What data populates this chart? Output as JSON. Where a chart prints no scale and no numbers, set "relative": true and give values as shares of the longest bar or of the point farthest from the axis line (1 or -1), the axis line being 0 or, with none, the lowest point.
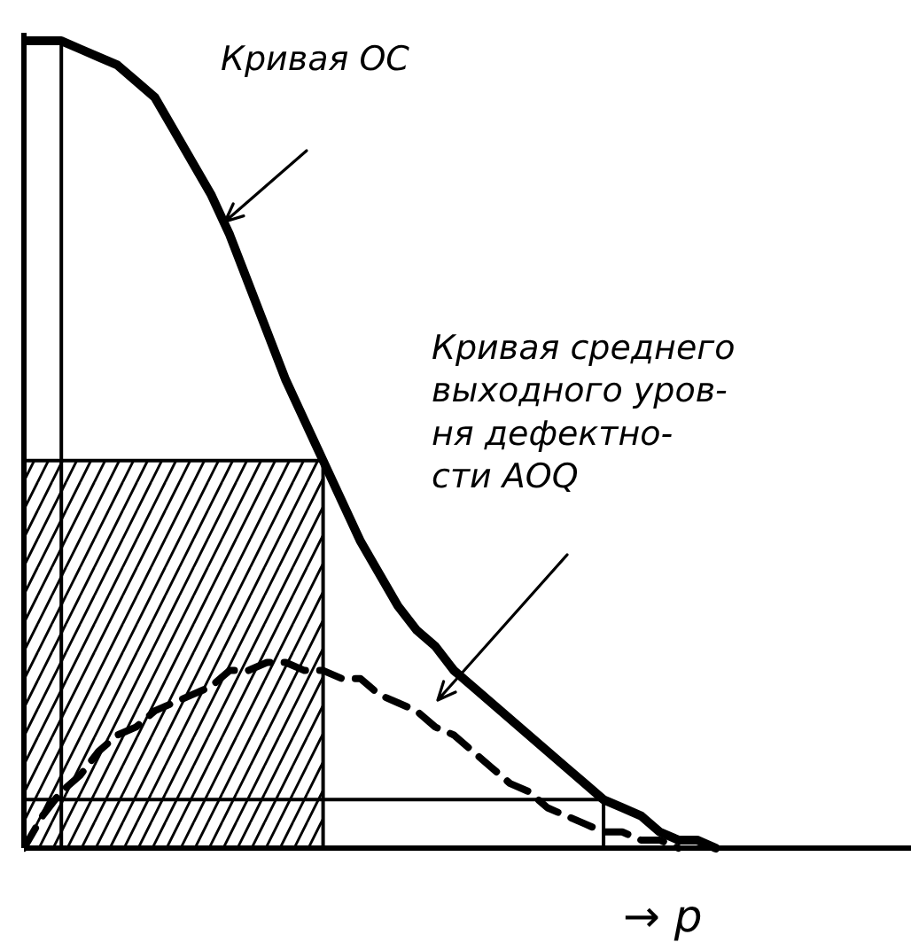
{
  "chart_data": {
    "type": "line",
    "relative": true,
    "xlabel": "→ p",
    "categories": [
      null,
      null,
      null,
      null,
      null,
      null,
      null,
      null,
      null,
      null,
      null,
      null,
      null,
      null,
      null,
      null,
      null,
      null,
      null,
      null,
      null,
      null,
      null,
      null,
      null,
      null,
      null,
      null,
      null,
      null,
      null,
      null,
      null,
      null,
      null,
      null,
      null,
      null,
      null,
      null,
      null,
      null,
      null,
      null,
      null,
      null,
      null,
      null
    ],
    "series": [
      {
        "color": "#000000",
        "line_style": "solid",
        "values": [
          1.0,
          1.0,
          1.0,
          0.99,
          0.98,
          0.97,
          0.95,
          0.93,
          0.89,
          0.85,
          0.81,
          0.76,
          0.7,
          0.64,
          0.58,
          0.53,
          0.48,
          0.43,
          0.38,
          0.34,
          0.3,
          0.27,
          0.25,
          0.22,
          0.2,
          0.18,
          0.16,
          0.14,
          0.12,
          0.1,
          0.08,
          0.06,
          0.05,
          0.04,
          0.02,
          0.01,
          0.01,
          0,
          null,
          null,
          null,
          null,
          null,
          null,
          null,
          null,
          null,
          null
        ]
      },
      {
        "color": "#000000",
        "line_style": "dashed",
        "values": [
          0,
          0.04,
          0.07,
          0.09,
          0.12,
          0.14,
          0.15,
          0.17,
          0.18,
          0.19,
          0.2,
          0.22,
          0.22,
          0.23,
          0.23,
          0.22,
          0.22,
          0.21,
          0.21,
          0.19,
          0.18,
          0.17,
          0.15,
          0.14,
          0.12,
          0.1,
          0.08,
          0.07,
          0.05,
          0.04,
          0.03,
          0.02,
          0.02,
          0.01,
          0.01,
          0,
          null,
          null,
          null,
          null,
          null,
          null,
          null,
          null,
          null,
          null,
          null,
          null
        ]
      },
      {
        "type": "area",
        "color": "#000000",
        "values": [
          0.48,
          0.48,
          0.48,
          0.48,
          0.48,
          0.48,
          0.48,
          0.48,
          0.48,
          0.48,
          0.48,
          0.48,
          0.48,
          0.48,
          0.48,
          0.48,
          0.48,
          null,
          null,
          null,
          null,
          null,
          null,
          null,
          null,
          null,
          null,
          null,
          null,
          null,
          null,
          null,
          null,
          null,
          null,
          null,
          null,
          null,
          null,
          null,
          null,
          null,
          null,
          null,
          null,
          null,
          null,
          null
        ]
      },
      {
        "type": "step",
        "color": "#000000",
        "values": [
          null,
          1.0,
          0,
          null,
          null,
          null,
          null,
          null,
          null,
          null,
          null,
          null,
          null,
          null,
          null,
          null,
          null,
          null,
          null,
          null,
          null,
          null,
          null,
          null,
          null,
          null,
          null,
          null,
          null,
          null,
          null,
          null,
          null,
          null,
          null,
          null,
          null,
          null,
          null,
          null,
          null,
          null,
          null,
          null,
          null,
          null,
          null,
          null
        ]
      },
      {
        "type": "step",
        "color": "#000000",
        "values": [
          0.06,
          0.06,
          0.06,
          0.06,
          0.06,
          0.06,
          0.06,
          0.06,
          0.06,
          0.06,
          0.06,
          0.06,
          0.06,
          0.06,
          0.06,
          0.06,
          0.06,
          0.06,
          0.06,
          0.06,
          0.06,
          0.06,
          0.06,
          0.06,
          0.06,
          0.06,
          0.06,
          0.06,
          0.06,
          0.06,
          0.06,
          0,
          null,
          null,
          null,
          null,
          null,
          null,
          null,
          null,
          null,
          null,
          null,
          null,
          null,
          null,
          null,
          null
        ]
      }
    ],
    "annotations": [
      "Кривая OC",
      "Кривая среднего\nвыходного уров-\nня дефектно-\nсти AOQ"
    ]
  }
}
